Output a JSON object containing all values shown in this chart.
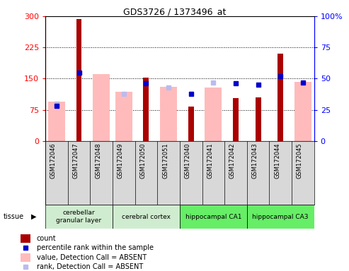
{
  "title": "GDS3726 / 1373496_at",
  "samples": [
    "GSM172046",
    "GSM172047",
    "GSM172048",
    "GSM172049",
    "GSM172050",
    "GSM172051",
    "GSM172040",
    "GSM172041",
    "GSM172042",
    "GSM172043",
    "GSM172044",
    "GSM172045"
  ],
  "count": [
    null,
    293,
    null,
    null,
    152,
    null,
    82,
    null,
    103,
    105,
    210,
    null
  ],
  "percentile_rank": [
    28,
    55,
    null,
    null,
    46,
    null,
    38,
    null,
    46,
    45,
    52,
    47
  ],
  "value_absent": [
    95,
    null,
    160,
    118,
    null,
    130,
    null,
    128,
    null,
    null,
    null,
    142
  ],
  "rank_absent": [
    30,
    null,
    null,
    38,
    null,
    43,
    null,
    47,
    null,
    null,
    null,
    null
  ],
  "left_ylim": [
    0,
    300
  ],
  "right_ylim": [
    0,
    100
  ],
  "yticks_left": [
    0,
    75,
    150,
    225,
    300
  ],
  "yticks_right": [
    0,
    25,
    50,
    75,
    100
  ],
  "tissue_groups": [
    {
      "label": "cerebellar\ngranular layer",
      "start": 0,
      "end": 3,
      "color": "#d0ecd0"
    },
    {
      "label": "cerebral cortex",
      "start": 3,
      "end": 6,
      "color": "#d0ecd0"
    },
    {
      "label": "hippocampal CA1",
      "start": 6,
      "end": 9,
      "color": "#66ee66"
    },
    {
      "label": "hippocampal CA3",
      "start": 9,
      "end": 12,
      "color": "#66ee66"
    }
  ],
  "colors": {
    "count": "#aa0000",
    "percentile_rank": "#0000cc",
    "value_absent": "#ffbbbb",
    "rank_absent": "#bbbbee"
  },
  "legend_items": [
    {
      "label": "count",
      "color": "#aa0000",
      "type": "bar"
    },
    {
      "label": "percentile rank within the sample",
      "color": "#0000cc",
      "type": "square"
    },
    {
      "label": "value, Detection Call = ABSENT",
      "color": "#ffbbbb",
      "type": "bar"
    },
    {
      "label": "rank, Detection Call = ABSENT",
      "color": "#bbbbee",
      "type": "square"
    }
  ],
  "fig_width": 4.93,
  "fig_height": 3.84,
  "dpi": 100
}
